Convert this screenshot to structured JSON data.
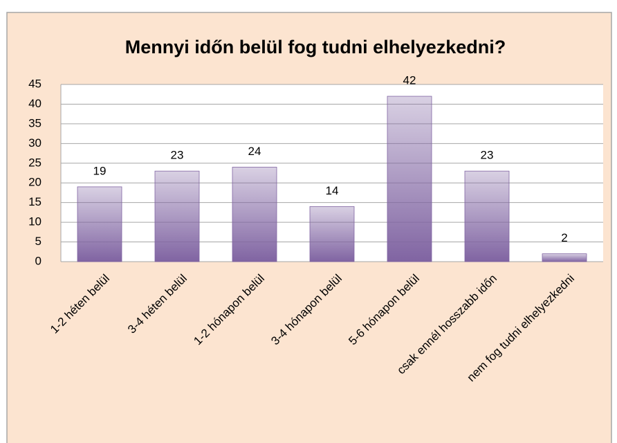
{
  "chart_data": {
    "type": "bar",
    "title": "Mennyi időn belül fog tudni elhelyezkedni?",
    "categories": [
      "1-2 héten belül",
      "3-4 héten belül",
      "1-2 hónapon belül",
      "3-4 hónapon belül",
      "5-6 hónapon belül",
      "csak ennél hosszabb időn",
      "nem fog tudni elhelyezkedni"
    ],
    "values": [
      19,
      23,
      24,
      14,
      42,
      23,
      2
    ],
    "color": "#8064a2",
    "ylim": [
      0,
      45
    ],
    "yticks": [
      0,
      5,
      10,
      15,
      20,
      25,
      30,
      35,
      40,
      45
    ],
    "grid": true
  }
}
